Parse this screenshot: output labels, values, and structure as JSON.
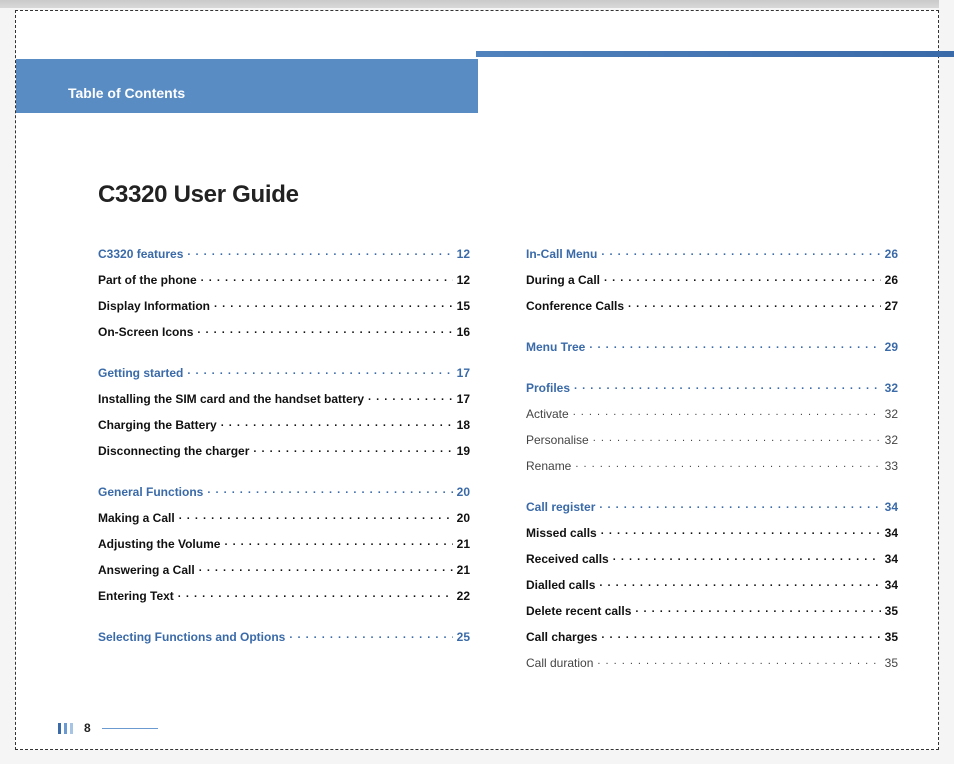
{
  "header": {
    "toc_label": "Table of Contents",
    "guide_title": "C3320 User Guide"
  },
  "footer": {
    "page_number": "8"
  },
  "columns": {
    "left": [
      {
        "rows": [
          {
            "label": "C3320 features",
            "page": "12",
            "style": "heading"
          },
          {
            "label": "Part of the phone",
            "page": "12",
            "style": "bold"
          },
          {
            "label": "Display Information",
            "page": "15",
            "style": "bold"
          },
          {
            "label": "On-Screen Icons",
            "page": "16",
            "style": "bold"
          }
        ]
      },
      {
        "rows": [
          {
            "label": "Getting started",
            "page": "17",
            "style": "heading"
          },
          {
            "label": "Installing the SIM card and the handset battery",
            "page": "17",
            "style": "bold"
          },
          {
            "label": "Charging the Battery",
            "page": "18",
            "style": "bold"
          },
          {
            "label": "Disconnecting the charger",
            "page": "19",
            "style": "bold"
          }
        ]
      },
      {
        "rows": [
          {
            "label": "General Functions",
            "page": "20",
            "style": "heading"
          },
          {
            "label": "Making a Call",
            "page": "20",
            "style": "bold"
          },
          {
            "label": "Adjusting the Volume",
            "page": "21",
            "style": "bold"
          },
          {
            "label": "Answering a Call",
            "page": "21",
            "style": "bold"
          },
          {
            "label": "Entering Text",
            "page": "22",
            "style": "bold"
          }
        ]
      },
      {
        "rows": [
          {
            "label": "Selecting Functions and Options",
            "page": "25",
            "style": "heading"
          }
        ]
      }
    ],
    "right": [
      {
        "rows": [
          {
            "label": "In-Call Menu",
            "page": "26",
            "style": "heading"
          },
          {
            "label": "During a Call",
            "page": "26",
            "style": "bold"
          },
          {
            "label": "Conference Calls",
            "page": "27",
            "style": "bold"
          }
        ]
      },
      {
        "rows": [
          {
            "label": "Menu Tree",
            "page": "29",
            "style": "heading"
          }
        ]
      },
      {
        "rows": [
          {
            "label": "Profiles",
            "page": "32",
            "style": "heading"
          },
          {
            "label": "Activate",
            "page": "32",
            "style": "normal"
          },
          {
            "label": "Personalise",
            "page": "32",
            "style": "normal"
          },
          {
            "label": "Rename",
            "page": "33",
            "style": "normal"
          }
        ]
      },
      {
        "rows": [
          {
            "label": "Call register",
            "page": "34",
            "style": "heading"
          },
          {
            "label": "Missed calls",
            "page": "34",
            "style": "bold"
          },
          {
            "label": "Received calls",
            "page": "34",
            "style": "bold"
          },
          {
            "label": "Dialled calls",
            "page": "34",
            "style": "bold"
          },
          {
            "label": "Delete recent calls",
            "page": "35",
            "style": "bold"
          },
          {
            "label": "Call charges",
            "page": "35",
            "style": "bold"
          },
          {
            "label": "Call duration",
            "page": "35",
            "style": "normal"
          }
        ]
      }
    ]
  }
}
